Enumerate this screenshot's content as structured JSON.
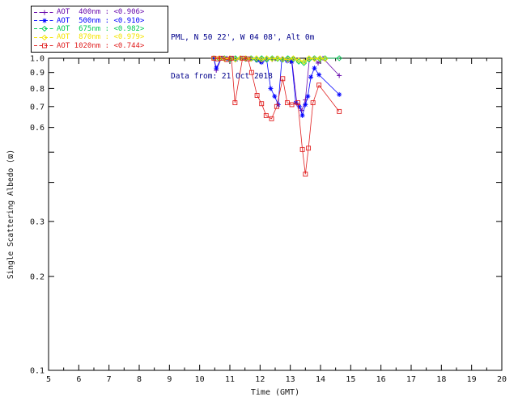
{
  "header": {
    "line1": "PML, N 50 22', W 04 08', Alt 0m",
    "line2": "Data from: 21 Oct 2018"
  },
  "chart_data": {
    "type": "scatter",
    "title": "",
    "xlabel": "Time (GMT)",
    "ylabel": "Single Scattering Albedo (ϖ)",
    "x_range": [
      5,
      20
    ],
    "x_ticks": [
      5,
      6,
      7,
      8,
      9,
      10,
      11,
      12,
      13,
      14,
      15,
      16,
      17,
      18,
      19,
      20
    ],
    "y_scale": "log",
    "y_range": [
      0.1,
      1.0
    ],
    "y_ticks": [
      0.1,
      0.2,
      0.3,
      0.4,
      0.5,
      0.6,
      0.7,
      0.8,
      0.9,
      1.0
    ],
    "y_tick_labels": [
      "1.0",
      "0.9",
      "0.8",
      "0.7",
      "0.6",
      "0.3",
      "0.2",
      "0.1"
    ],
    "grid": false,
    "legend_position": "top-left",
    "series": [
      {
        "name": "AOT 400nm",
        "legend_label": "AOT  400nm : <0.906>",
        "mean_value": 0.906,
        "color": "#6A0DAD",
        "marker": "plus",
        "points": [
          [
            10.47,
            1.0
          ],
          [
            10.55,
            0.915
          ],
          [
            10.72,
            1.0
          ],
          [
            10.9,
            1.0
          ],
          [
            11.05,
            0.995
          ],
          [
            11.2,
            1.0
          ],
          [
            11.38,
            1.0
          ],
          [
            11.55,
            0.995
          ],
          [
            11.72,
            1.0
          ],
          [
            11.9,
            0.99
          ],
          [
            12.05,
            1.0
          ],
          [
            12.22,
            0.995
          ],
          [
            12.4,
            0.99
          ],
          [
            12.55,
            1.0
          ],
          [
            12.72,
            0.995
          ],
          [
            12.9,
            1.0
          ],
          [
            13.05,
            0.99
          ],
          [
            13.22,
            0.715
          ],
          [
            13.38,
            0.68
          ],
          [
            13.5,
            0.735
          ],
          [
            13.63,
            0.99
          ],
          [
            13.78,
            1.0
          ],
          [
            13.92,
            0.965
          ],
          [
            14.08,
            1.0
          ],
          [
            14.62,
            0.88
          ]
        ]
      },
      {
        "name": "AOT 500nm",
        "legend_label": "AOT  500nm : <0.910>",
        "mean_value": 0.91,
        "color": "#0000FF",
        "marker": "asterisk",
        "points": [
          [
            10.47,
            1.0
          ],
          [
            10.55,
            0.93
          ],
          [
            10.72,
            1.0
          ],
          [
            10.9,
            0.995
          ],
          [
            11.05,
            1.0
          ],
          [
            11.2,
            0.99
          ],
          [
            11.38,
            1.0
          ],
          [
            11.55,
            1.0
          ],
          [
            11.72,
            0.995
          ],
          [
            11.9,
            0.985
          ],
          [
            12.05,
            0.97
          ],
          [
            12.22,
            0.99
          ],
          [
            12.35,
            0.8
          ],
          [
            12.48,
            0.755
          ],
          [
            12.6,
            0.71
          ],
          [
            12.72,
            0.99
          ],
          [
            12.9,
            0.98
          ],
          [
            13.05,
            0.975
          ],
          [
            13.18,
            0.72
          ],
          [
            13.3,
            0.7
          ],
          [
            13.4,
            0.655
          ],
          [
            13.5,
            0.71
          ],
          [
            13.58,
            0.755
          ],
          [
            13.68,
            0.87
          ],
          [
            13.8,
            0.93
          ],
          [
            13.95,
            0.885
          ],
          [
            14.62,
            0.765
          ]
        ]
      },
      {
        "name": "AOT 675nm",
        "legend_label": "AOT  675nm : <0.982>",
        "mean_value": 0.982,
        "color": "#00CC55",
        "marker": "diamond",
        "points": [
          [
            10.47,
            1.0
          ],
          [
            10.65,
            0.995
          ],
          [
            10.82,
            1.0
          ],
          [
            11.0,
            0.99
          ],
          [
            11.18,
            1.0
          ],
          [
            11.35,
            1.0
          ],
          [
            11.52,
            0.995
          ],
          [
            11.7,
            1.0
          ],
          [
            11.88,
            0.99
          ],
          [
            12.05,
            1.0
          ],
          [
            12.22,
            0.99
          ],
          [
            12.4,
            1.0
          ],
          [
            12.58,
            0.995
          ],
          [
            12.75,
            0.99
          ],
          [
            12.92,
            1.0
          ],
          [
            13.1,
            0.995
          ],
          [
            13.28,
            0.975
          ],
          [
            13.45,
            0.965
          ],
          [
            13.62,
            0.99
          ],
          [
            13.8,
            1.0
          ],
          [
            13.98,
            0.995
          ],
          [
            14.15,
            1.0
          ],
          [
            14.62,
            1.0
          ]
        ]
      },
      {
        "name": "AOT 870nm",
        "legend_label": "AOT  870nm : <0.979>",
        "mean_value": 0.979,
        "color": "#F5E400",
        "marker": "diamond",
        "points": [
          [
            10.47,
            1.0
          ],
          [
            10.65,
            1.0
          ],
          [
            10.82,
            0.995
          ],
          [
            11.0,
            1.0
          ],
          [
            11.18,
            0.99
          ],
          [
            11.35,
            1.0
          ],
          [
            11.52,
            1.0
          ],
          [
            11.7,
            0.995
          ],
          [
            11.88,
            1.0
          ],
          [
            12.05,
            0.99
          ],
          [
            12.22,
            1.0
          ],
          [
            12.4,
            0.995
          ],
          [
            12.58,
            1.0
          ],
          [
            12.75,
            0.995
          ],
          [
            12.92,
            0.99
          ],
          [
            13.1,
            1.0
          ],
          [
            13.28,
            0.985
          ],
          [
            13.45,
            0.975
          ],
          [
            13.62,
            1.0
          ],
          [
            13.8,
            0.995
          ],
          [
            13.98,
            1.0
          ],
          [
            14.15,
            0.995
          ]
        ]
      },
      {
        "name": "AOT 1020nm",
        "legend_label": "AOT 1020nm : <0.744>",
        "mean_value": 0.744,
        "color": "#E02020",
        "marker": "square",
        "points": [
          [
            10.47,
            1.0
          ],
          [
            10.6,
            0.995
          ],
          [
            10.72,
            1.0
          ],
          [
            10.9,
            0.99
          ],
          [
            11.05,
            1.0
          ],
          [
            11.17,
            0.72
          ],
          [
            11.42,
            1.0
          ],
          [
            11.6,
            0.995
          ],
          [
            11.72,
            0.9
          ],
          [
            11.9,
            0.76
          ],
          [
            12.05,
            0.715
          ],
          [
            12.2,
            0.655
          ],
          [
            12.38,
            0.64
          ],
          [
            12.55,
            0.7
          ],
          [
            12.75,
            0.86
          ],
          [
            12.9,
            0.72
          ],
          [
            13.05,
            0.71
          ],
          [
            13.25,
            0.72
          ],
          [
            13.4,
            0.51
          ],
          [
            13.5,
            0.425
          ],
          [
            13.6,
            0.515
          ],
          [
            13.75,
            0.72
          ],
          [
            13.95,
            0.82
          ],
          [
            14.62,
            0.675
          ]
        ]
      }
    ]
  }
}
